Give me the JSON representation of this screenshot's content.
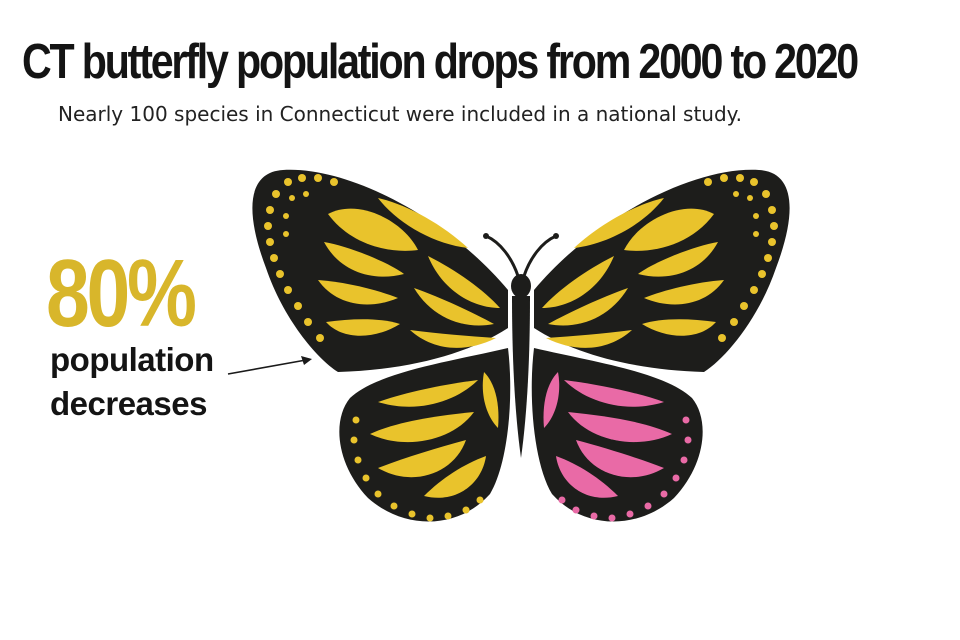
{
  "headline": "CT butterfly population drops from 2000 to 2020",
  "subheadline": "Nearly 100 species in Connecticut were included in a national study.",
  "stat": {
    "value": "80%",
    "label_line1": "population",
    "label_line2": "decreases",
    "fraction_of_wing_highlighted": 0.2
  },
  "colors": {
    "headline": "#141414",
    "stat_value": "#d8b62b",
    "wing_fill": "#e9c32c",
    "wing_vein": "#1d1d1b",
    "highlight": "#e96aa6",
    "background": "#ffffff"
  },
  "illustration": "monarch-butterfly"
}
